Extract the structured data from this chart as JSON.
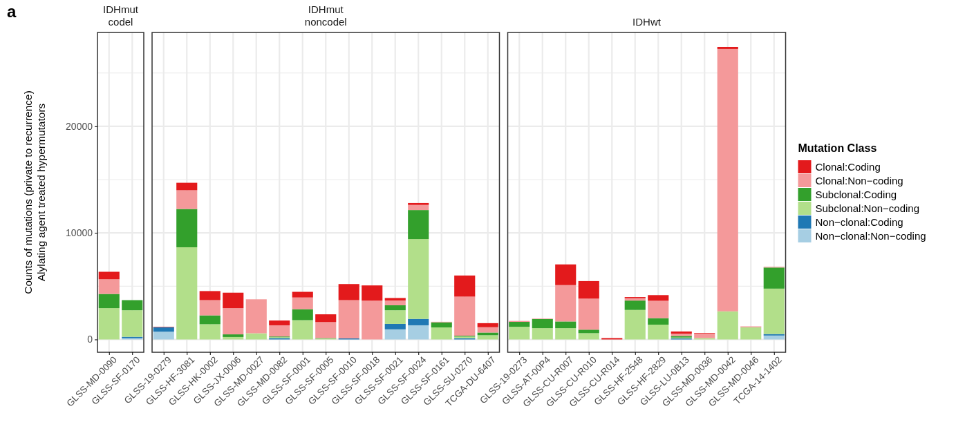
{
  "chart_data": [
    {
      "type": "bar",
      "stacked": true,
      "title": "IDHmut\ncodel",
      "ylabel": "Counts of mutations (private to recurrence)\nAlylating agent treated hypermutators",
      "annotations": [
        "a"
      ],
      "categories": [
        "GLSS-MD-0090",
        "GLSS-SF-0170"
      ],
      "ylim": [
        -1200,
        28800
      ],
      "yticks": [
        0,
        {
          "value": 5000,
          "label": null
        },
        10000,
        {
          "value": 15000,
          "label": null
        },
        20000,
        {
          "value": 25000,
          "label": null
        }
      ],
      "grid": true,
      "series": [
        {
          "color": "#a6cee3",
          "values": [
            0,
            120
          ]
        },
        {
          "color": "#1f78b4",
          "values": [
            0,
            130
          ]
        },
        {
          "color": "#b2df8a",
          "values": [
            2940,
            2490
          ]
        },
        {
          "color": "#33a02c",
          "values": [
            1330,
            950
          ]
        },
        {
          "color": "#f4999a",
          "values": [
            1380,
            0
          ]
        },
        {
          "color": "#e31a1c",
          "values": [
            700,
            0
          ]
        }
      ]
    },
    {
      "type": "bar",
      "stacked": true,
      "title": "IDHmut\nnoncodel",
      "tick_labels": "x",
      "categories": [
        "GLSS-19-0279",
        "GLSS-HF-3081",
        "GLSS-HK-0002",
        "GLSS-JX-0006",
        "GLSS-MD-0027",
        "GLSS-MD-0082",
        "GLSS-SF-0001",
        "GLSS-SF-0005",
        "GLSS-SF-0010",
        "GLSS-SF-0018",
        "GLSS-SF-0021",
        "GLSS-SF-0024",
        "GLSS-SF-0161",
        "GLSS-SU-0270",
        "TCGA-DU-6407"
      ],
      "ylim": [
        -1200,
        28800
      ],
      "yticks": [
        0,
        {
          "value": 5000,
          "label": null
        },
        10000,
        {
          "value": 15000,
          "label": null
        },
        20000,
        {
          "value": 25000,
          "label": null
        }
      ],
      "grid": true,
      "series": [
        {
          "color": "#a6cee3",
          "values": [
            730,
            0,
            0,
            0,
            0,
            0,
            0,
            0,
            0,
            0,
            950,
            1330,
            0,
            null,
            0
          ]
        },
        {
          "color": "#1f78b4",
          "values": [
            420,
            0,
            0,
            0,
            0,
            130,
            0,
            0,
            100,
            0,
            510,
            600,
            0,
            120,
            0
          ]
        },
        {
          "color": "#b2df8a",
          "values": [
            0,
            8650,
            1430,
            230,
            580,
            80,
            1810,
            80,
            0,
            null,
            1280,
            7490,
            1130,
            150,
            400
          ]
        },
        {
          "color": "#33a02c",
          "values": [
            0,
            3590,
            830,
            250,
            0,
            70,
            1030,
            50,
            0,
            0,
            470,
            2720,
            480,
            80,
            250
          ]
        },
        {
          "color": "#f4999a",
          "values": [
            0,
            1760,
            1430,
            2460,
            3190,
            1050,
            1100,
            1500,
            3590,
            3640,
            450,
            480,
            50,
            3670,
            500
          ]
        },
        {
          "color": "#e31a1c",
          "values": [
            40,
            700,
            850,
            1450,
            null,
            450,
            530,
            730,
            1510,
            1430,
            230,
            180,
            0,
            1980,
            380
          ]
        }
      ]
    },
    {
      "type": "bar",
      "stacked": true,
      "title": "IDHwt",
      "tick_labels": "x",
      "legend": "right",
      "legend_title": "Mutation Class",
      "categories": [
        "GLSS-19-0273",
        "GLSS-AT-00P4",
        "GLSS-CU-R007",
        "GLSS-CU-R010",
        "GLSS-CU-R014",
        "GLSS-HF-2548",
        "GLSS-HF-2829",
        "GLSS-LU-0B13",
        "GLSS-MD-0036",
        "GLSS-MD-0042",
        "GLSS-MD-0046",
        "TCGA-14-1402"
      ],
      "ylim": [
        -1200,
        28800
      ],
      "yticks": [
        0,
        {
          "value": 5000,
          "label": null
        },
        10000,
        {
          "value": 15000,
          "label": null
        },
        20000,
        {
          "value": 25000,
          "label": null
        }
      ],
      "grid": true,
      "series": [
        {
          "name": "Non−clonal:Non−coding",
          "color": "#a6cee3",
          "values": [
            0,
            0,
            0,
            0,
            0,
            0,
            0,
            0,
            0,
            0,
            0,
            370
          ]
        },
        {
          "name": "Non−clonal:Coding",
          "color": "#1f78b4",
          "values": [
            0,
            0,
            0,
            0,
            0,
            0,
            0,
            90,
            0,
            0,
            0,
            140
          ]
        },
        {
          "name": "Subclonal:Non−coding",
          "color": "#b2df8a",
          "values": [
            1190,
            1060,
            1060,
            590,
            0,
            2770,
            1390,
            90,
            130,
            2640,
            1140,
            4260
          ]
        },
        {
          "name": "Subclonal:Coding",
          "color": "#33a02c",
          "values": [
            460,
            850,
            630,
            330,
            0,
            880,
            610,
            150,
            0,
            0,
            0,
            1980
          ]
        },
        {
          "name": "Clonal:Non−coding",
          "color": "#f4999a",
          "values": [
            90,
            50,
            3410,
            2910,
            0,
            220,
            1630,
            220,
            420,
            24610,
            90,
            70
          ]
        },
        {
          "name": "Clonal:Coding",
          "color": "#e31a1c",
          "values": [
            0,
            0,
            1940,
            1650,
            130,
            110,
            530,
            200,
            50,
            190,
            0,
            0
          ]
        }
      ]
    }
  ]
}
